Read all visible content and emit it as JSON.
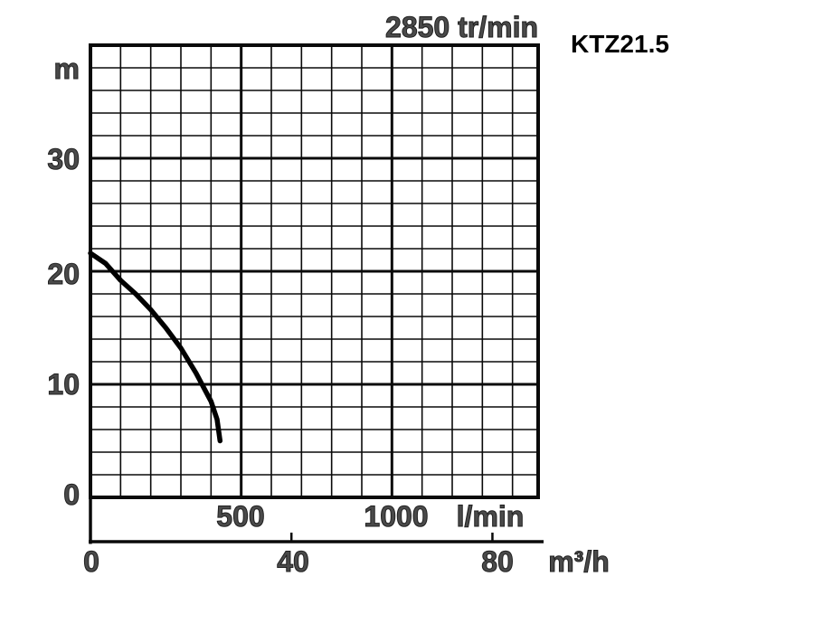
{
  "chart": {
    "title": "2850 tr/min",
    "model": "KTZ21.5"
  },
  "chart_data": {
    "type": "line",
    "title": "2850 tr/min",
    "model": "KTZ21.5",
    "background": "#ffffff",
    "grid": true,
    "curve_color": "#000000",
    "label_color": "#3f3f3f",
    "y_axis": {
      "unit": "m",
      "range": [
        0,
        40
      ],
      "major_ticks": [
        0,
        10,
        20,
        30
      ],
      "minor_step": 2
    },
    "x_axis_primary": {
      "unit": "l/min",
      "range": [
        0,
        1485
      ],
      "major_ticks": [
        500,
        1000
      ],
      "minor_step": 100
    },
    "x_axis_secondary": {
      "unit": "m³/h",
      "ticks": [
        0,
        40,
        80
      ]
    },
    "series": [
      {
        "name": "KTZ21.5 head curve",
        "points_lmin_m": [
          [
            0,
            21.6
          ],
          [
            50,
            20.7
          ],
          [
            100,
            19.2
          ],
          [
            150,
            18.0
          ],
          [
            200,
            16.6
          ],
          [
            250,
            15.0
          ],
          [
            300,
            13.2
          ],
          [
            350,
            11.0
          ],
          [
            400,
            8.5
          ],
          [
            420,
            6.9
          ],
          [
            430,
            5.0
          ]
        ]
      }
    ]
  }
}
